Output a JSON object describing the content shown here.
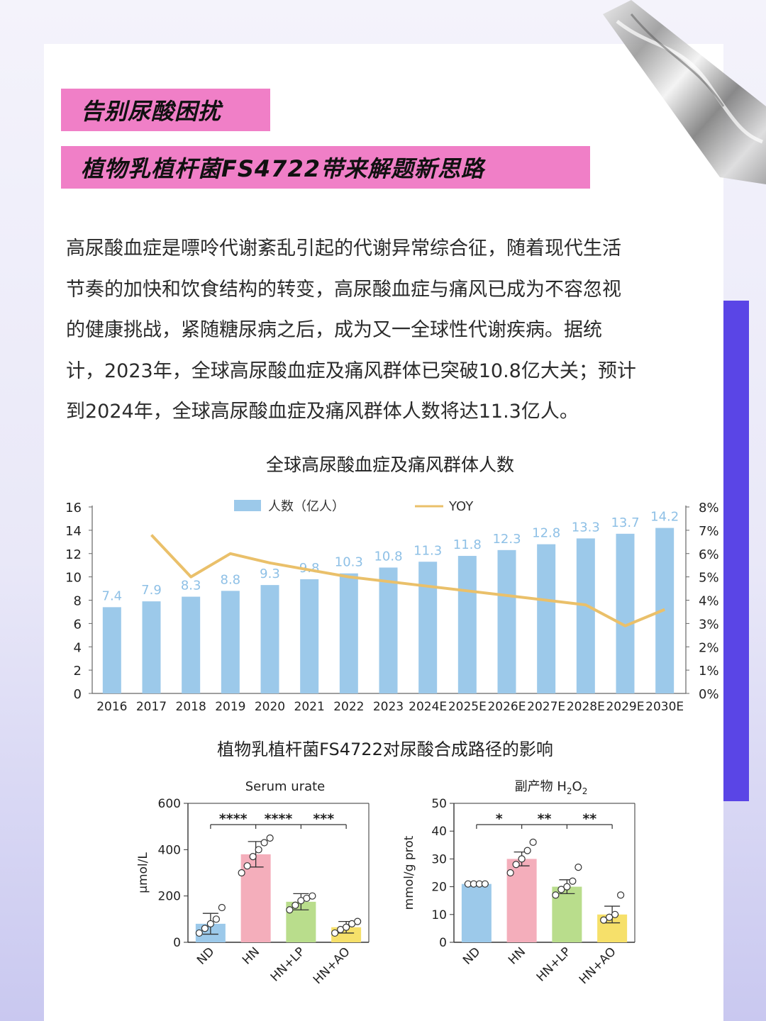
{
  "header": {
    "title_line1": "告别尿酸困扰",
    "title_line2": "植物乳植杆菌FS4722带来解题新思路"
  },
  "intro": {
    "lines": [
      "高尿酸血症是嘌呤代谢紊乱引起的代谢异常综合征，随着现代生活",
      "节奏的加快和饮食结构的转变，高尿酸血症与痛风已成为不容忽视",
      "的健康挑战，紧随糖尿病之后，成为又一全球性代谢疾病。据统",
      "计，2023年，全球高尿酸血症及痛风群体已突破10.8亿大关；预计",
      "到2024年，全球高尿酸血症及痛风群体人数将达11.3亿人。"
    ]
  },
  "colors": {
    "accent_pink": "#f07fc7",
    "accent_purple": "#5a45e6",
    "bar_blue": "#9cc9ea",
    "yoy_line": "#eac06a"
  },
  "chart_data": [
    {
      "type": "bar",
      "title": "全球高尿酸血症及痛风群体人数",
      "categories": [
        "2016",
        "2017",
        "2018",
        "2019",
        "2020",
        "2021",
        "2022",
        "2023",
        "2024E",
        "2025E",
        "2026E",
        "2027E",
        "2028E",
        "2029E",
        "2030E"
      ],
      "series": [
        {
          "name": "人数（亿人）",
          "type": "bar",
          "axis": "left",
          "values": [
            7.4,
            7.9,
            8.3,
            8.8,
            9.3,
            9.8,
            10.3,
            10.8,
            11.3,
            11.8,
            12.3,
            12.8,
            13.3,
            13.7,
            14.2
          ]
        },
        {
          "name": "YOY",
          "type": "line",
          "axis": "right",
          "unit": "%",
          "values": [
            null,
            6.8,
            5.0,
            6.0,
            5.6,
            5.3,
            5.0,
            4.8,
            4.6,
            4.4,
            4.2,
            4.0,
            3.8,
            2.9,
            3.6
          ]
        }
      ],
      "ylim": [
        0,
        16
      ],
      "yticks": [
        0,
        2,
        4,
        6,
        8,
        10,
        12,
        14,
        16
      ],
      "y2lim": [
        0,
        8
      ],
      "y2ticks": [
        "0%",
        "1%",
        "2%",
        "3%",
        "4%",
        "5%",
        "6%",
        "7%",
        "8%"
      ],
      "legend": "top-center"
    },
    {
      "type": "bar",
      "title": "植物乳植杆菌FS4722对尿酸合成路径的影响",
      "panels": [
        {
          "title": "Serum urate",
          "ylabel": "μmol/L",
          "ylim": [
            0,
            600
          ],
          "yticks": [
            0,
            200,
            400,
            600
          ],
          "categories": [
            "ND",
            "HN",
            "HN+LP",
            "HN+AO"
          ],
          "values": [
            80,
            380,
            175,
            65
          ],
          "errors": [
            45,
            55,
            35,
            25
          ],
          "points": [
            [
              40,
              60,
              80,
              100,
              150
            ],
            [
              300,
              330,
              370,
              400,
              430,
              450
            ],
            [
              140,
              160,
              180,
              190,
              200
            ],
            [
              40,
              55,
              65,
              80,
              90
            ]
          ],
          "bar_colors": [
            "#9cc9ea",
            "#f4aebb",
            "#b9dd8c",
            "#f6e06a"
          ],
          "significance": [
            "****",
            "****",
            "***"
          ]
        },
        {
          "title_parts": {
            "pre": "副产物  H",
            "sub1": "2",
            "mid": "O",
            "sub2": "2"
          },
          "ylabel": "mmol/g prot",
          "ylim": [
            0,
            50
          ],
          "yticks": [
            0,
            10,
            20,
            30,
            40,
            50
          ],
          "categories": [
            "ND",
            "HN",
            "HN+LP",
            "HN+AO"
          ],
          "values": [
            21,
            30,
            20,
            10
          ],
          "errors": [
            0.5,
            2.5,
            2.5,
            3
          ],
          "points": [
            [
              21,
              21,
              21,
              21
            ],
            [
              25,
              28,
              30,
              33,
              36
            ],
            [
              17,
              19,
              20,
              22,
              27
            ],
            [
              8,
              9,
              10,
              17
            ]
          ],
          "bar_colors": [
            "#9cc9ea",
            "#f4aebb",
            "#b9dd8c",
            "#f6e06a"
          ],
          "significance": [
            "*",
            "**",
            "**"
          ]
        }
      ]
    }
  ]
}
